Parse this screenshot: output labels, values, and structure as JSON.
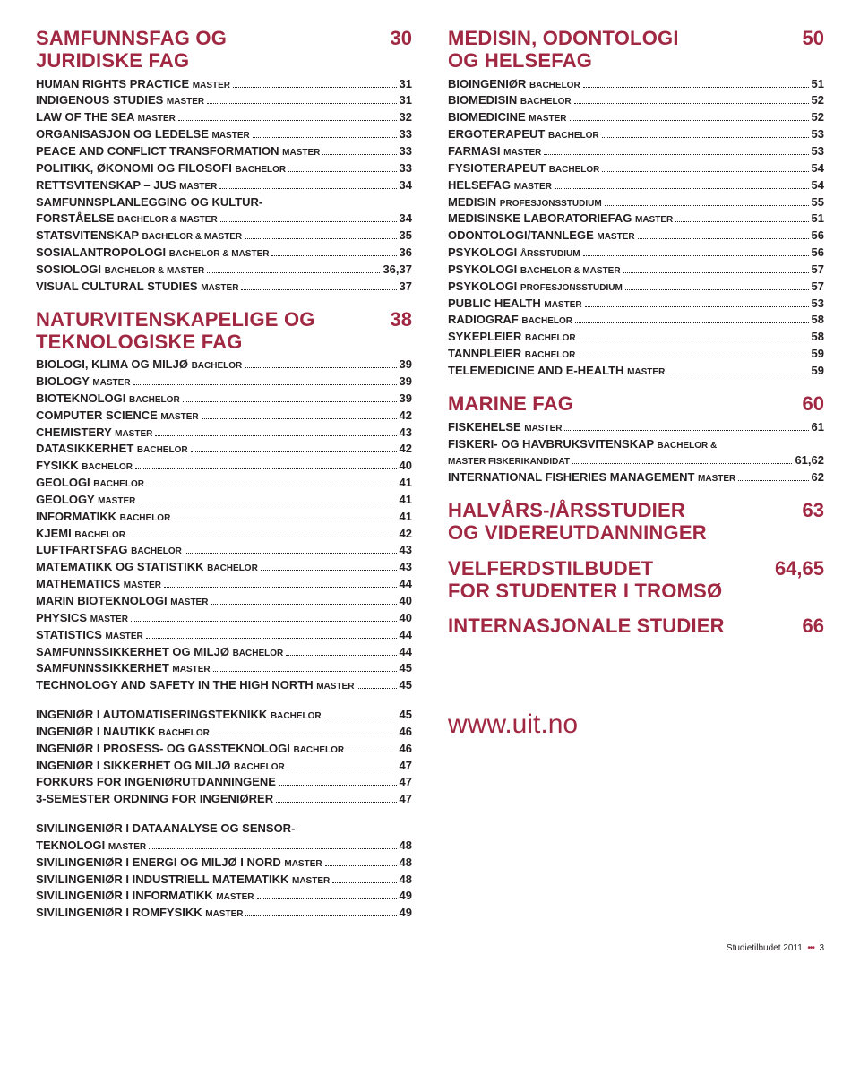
{
  "left": {
    "sections": [
      {
        "title_lines": [
          "SAMFUNNSFAG OG",
          "JURIDISKE FAG"
        ],
        "page": "30",
        "rows": [
          {
            "t": "HUMAN RIGHTS PRACTICE",
            "s": "MASTER",
            "p": "31"
          },
          {
            "t": "INDIGENOUS STUDIES",
            "s": "MASTER",
            "p": "31"
          },
          {
            "t": "LAW OF THE SEA",
            "s": "MASTER",
            "p": "32"
          },
          {
            "t": "ORGANISASJON OG LEDELSE",
            "s": "MASTER",
            "p": "33"
          },
          {
            "t": "PEACE AND CONFLICT TRANSFORMATION",
            "s": "MASTER",
            "p": "33"
          },
          {
            "t": "POLITIKK, ØKONOMI OG FILOSOFI",
            "s": "BACHELOR",
            "p": "33"
          },
          {
            "t": "RETTSVITENSKAP – JUS",
            "s": "MASTER",
            "p": "34"
          },
          {
            "t": "SAMFUNNSPLANLEGGING OG KULTUR-",
            "cont": true
          },
          {
            "t": "FORSTÅELSE",
            "s": "BACHELOR & MASTER",
            "p": "34"
          },
          {
            "t": "STATSVITENSKAP",
            "s": "BACHELOR & MASTER",
            "p": "35"
          },
          {
            "t": "SOSIALANTROPOLOGI",
            "s": "BACHELOR & MASTER",
            "p": "36"
          },
          {
            "t": "SOSIOLOGI",
            "s": "BACHELOR & MASTER",
            "p": "36,37"
          },
          {
            "t": "VISUAL CULTURAL STUDIES",
            "s": "MASTER",
            "p": "37"
          }
        ]
      },
      {
        "title_lines": [
          "NATURVITENSKAPELIGE OG",
          "TEKNOLOGISKE FAG"
        ],
        "page": "38",
        "rows": [
          {
            "t": "BIOLOGI, KLIMA OG MILJØ",
            "s": "BACHELOR",
            "p": "39"
          },
          {
            "t": "BIOLOGY",
            "s": "MASTER",
            "p": "39"
          },
          {
            "t": "BIOTEKNOLOGI",
            "s": "BACHELOR",
            "p": "39"
          },
          {
            "t": "COMPUTER SCIENCE",
            "s": "MASTER",
            "p": "42"
          },
          {
            "t": "CHEMISTERY",
            "s": "MASTER",
            "p": "43"
          },
          {
            "t": "DATASIKKERHET",
            "s": "BACHELOR",
            "p": "42"
          },
          {
            "t": "FYSIKK",
            "s": "BACHELOR",
            "p": "40"
          },
          {
            "t": "GEOLOGI",
            "s": "BACHELOR",
            "p": "41"
          },
          {
            "t": "GEOLOGY",
            "s": "MASTER",
            "p": "41"
          },
          {
            "t": "INFORMATIKK",
            "s": "BACHELOR",
            "p": "41"
          },
          {
            "t": "KJEMI",
            "s": "BACHELOR",
            "p": "42"
          },
          {
            "t": "LUFTFARTSFAG",
            "s": "BACHELOR",
            "p": "43"
          },
          {
            "t": "MATEMATIKK OG STATISTIKK",
            "s": "BACHELOR",
            "p": "43"
          },
          {
            "t": "MATHEMATICS",
            "s": "MASTER",
            "p": "44"
          },
          {
            "t": "MARIN BIOTEKNOLOGI",
            "s": "MASTER",
            "p": "40"
          },
          {
            "t": "PHYSICS",
            "s": "MASTER",
            "p": "40"
          },
          {
            "t": "STATISTICS",
            "s": "MASTER",
            "p": "44"
          },
          {
            "t": "SAMFUNNSSIKKERHET OG MILJØ",
            "s": "BACHELOR",
            "p": "44"
          },
          {
            "t": "SAMFUNNSSIKKERHET",
            "s": "MASTER",
            "p": "45"
          },
          {
            "t": "TECHNOLOGY AND SAFETY IN THE HIGH NORTH",
            "s": "MASTER",
            "p": "45"
          }
        ]
      },
      {
        "rows": [
          {
            "t": "INGENIØR I AUTOMATISERINGSTEKNIKK",
            "s": "BACHELOR",
            "p": "45"
          },
          {
            "t": "INGENIØR I NAUTIKK",
            "s": "BACHELOR",
            "p": "46"
          },
          {
            "t": "INGENIØR I PROSESS- OG GASSTEKNOLOGI",
            "s": "BACHELOR",
            "p": "46"
          },
          {
            "t": "INGENIØR I SIKKERHET OG MILJØ",
            "s": "BACHELOR",
            "p": "47"
          },
          {
            "t": "FORKURS FOR INGENIØRUTDANNINGENE",
            "p": "47"
          },
          {
            "t": "3-SEMESTER ORDNING FOR INGENIØRER",
            "p": "47"
          }
        ]
      },
      {
        "rows": [
          {
            "t": "SIVILINGENIØR I DATAANALYSE OG SENSOR-",
            "cont": true
          },
          {
            "t": "TEKNOLOGI",
            "s": "MASTER",
            "p": "48"
          },
          {
            "t": "SIVILINGENIØR I ENERGI OG MILJØ I NORD",
            "s": "MASTER",
            "p": "48"
          },
          {
            "t": "SIVILINGENIØR I INDUSTRIELL MATEMATIKK",
            "s": "MASTER",
            "p": "48"
          },
          {
            "t": "SIVILINGENIØR I INFORMATIKK",
            "s": "MASTER",
            "p": "49"
          },
          {
            "t": "SIVILINGENIØR I ROMFYSIKK",
            "s": "MASTER",
            "p": "49"
          }
        ]
      }
    ]
  },
  "right": {
    "sections": [
      {
        "title_lines": [
          "MEDISIN, ODONTOLOGI",
          "OG HELSEFAG"
        ],
        "page": "50",
        "rows": [
          {
            "t": "BIOINGENIØR",
            "s": "BACHELOR",
            "p": "51"
          },
          {
            "t": "BIOMEDISIN",
            "s": "BACHELOR",
            "p": "52"
          },
          {
            "t": "BIOMEDICINE",
            "s": "MASTER",
            "p": "52"
          },
          {
            "t": "ERGOTERAPEUT",
            "s": "BACHELOR",
            "p": "53"
          },
          {
            "t": "FARMASI",
            "s": "MASTER",
            "p": "53"
          },
          {
            "t": "FYSIOTERAPEUT",
            "s": "BACHELOR",
            "p": "54"
          },
          {
            "t": "HELSEFAG",
            "s": "MASTER",
            "p": "54"
          },
          {
            "t": "MEDISIN",
            "s": "PROFESJONSSTUDIUM",
            "p": "55"
          },
          {
            "t": "MEDISINSKE LABORATORIEFAG",
            "s": "MASTER",
            "p": "51"
          },
          {
            "t": "ODONTOLOGI/TANNLEGE",
            "s": "MASTER",
            "p": "56"
          },
          {
            "t": "PSYKOLOGI",
            "s": "ÅRSSTUDIUM",
            "p": "56"
          },
          {
            "t": "PSYKOLOGI",
            "s": "BACHELOR & MASTER",
            "p": "57"
          },
          {
            "t": "PSYKOLOGI",
            "s": "PROFESJONSSTUDIUM",
            "p": "57"
          },
          {
            "t": "PUBLIC HEALTH",
            "s": "MASTER",
            "p": "53"
          },
          {
            "t": "RADIOGRAF",
            "s": "BACHELOR",
            "p": "58"
          },
          {
            "t": "SYKEPLEIER",
            "s": "BACHELOR",
            "p": "58"
          },
          {
            "t": "TANNPLEIER",
            "s": "BACHELOR",
            "p": "59"
          },
          {
            "t": "TELEMEDICINE AND E-HEALTH",
            "s": "MASTER",
            "p": "59"
          }
        ]
      },
      {
        "title_lines": [
          "MARINE FAG"
        ],
        "page": "60",
        "rows": [
          {
            "t": "FISKEHELSE",
            "s": "MASTER",
            "p": "61"
          },
          {
            "t": "FISKERI- OG HAVBRUKSVITENSKAP",
            "s": "BACHELOR &",
            "cont": true
          },
          {
            "t": "",
            "s": "MASTER FISKERIKANDIDAT",
            "p": "61,62"
          },
          {
            "t": "INTERNATIONAL FISHERIES MANAGEMENT",
            "s": "MASTER",
            "p": "62"
          }
        ]
      },
      {
        "title_lines": [
          "HALVÅRS-/ÅRSSTUDIER",
          "OG VIDEREUTDANNINGER"
        ],
        "page": "63"
      },
      {
        "title_lines": [
          "VELFERDSTILBUDET",
          "FOR STUDENTER I TROMSØ"
        ],
        "page": "64,65"
      },
      {
        "title_lines": [
          "INTERNASJONALE STUDIER"
        ],
        "page": "66"
      }
    ],
    "url": "www.uit.no"
  },
  "footer": {
    "label": "Studietilbudet 2011",
    "page": "3"
  }
}
